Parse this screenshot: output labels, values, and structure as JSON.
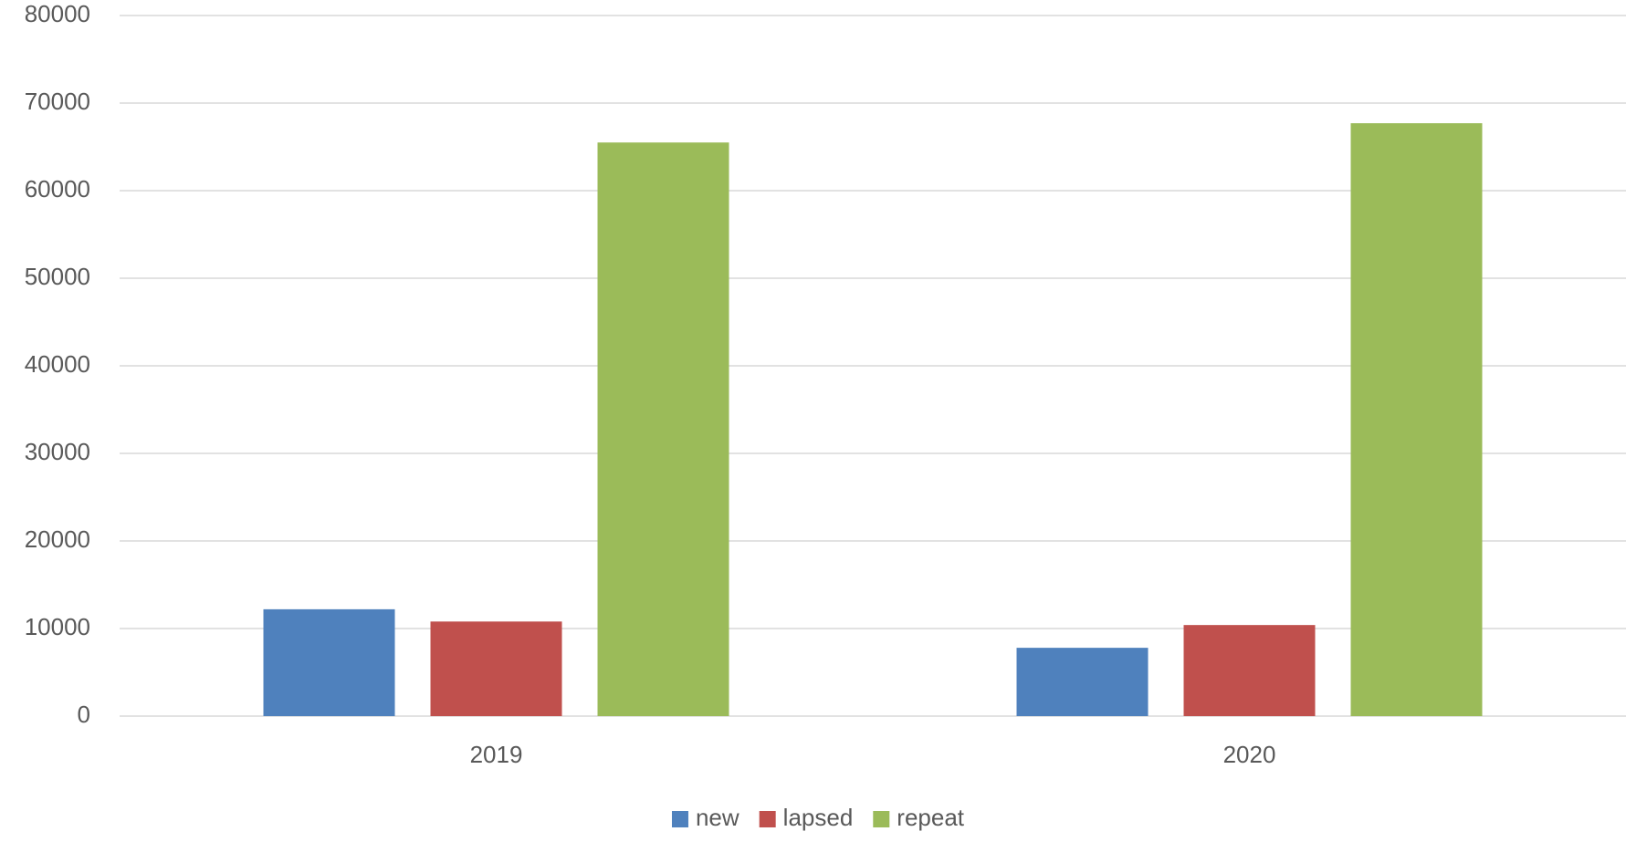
{
  "chart_data": {
    "type": "bar",
    "categories": [
      "2019",
      "2020"
    ],
    "series": [
      {
        "name": "new",
        "color": "#4f81bd",
        "values": [
          12200,
          7800
        ]
      },
      {
        "name": "lapsed",
        "color": "#c0504d",
        "values": [
          10800,
          10400
        ]
      },
      {
        "name": "repeat",
        "color": "#9bbb59",
        "values": [
          65500,
          67700
        ]
      }
    ],
    "ylim": [
      0,
      80000
    ],
    "yticks": [
      0,
      10000,
      20000,
      30000,
      40000,
      50000,
      60000,
      70000,
      80000
    ],
    "grid": true,
    "legend": "bottom"
  }
}
